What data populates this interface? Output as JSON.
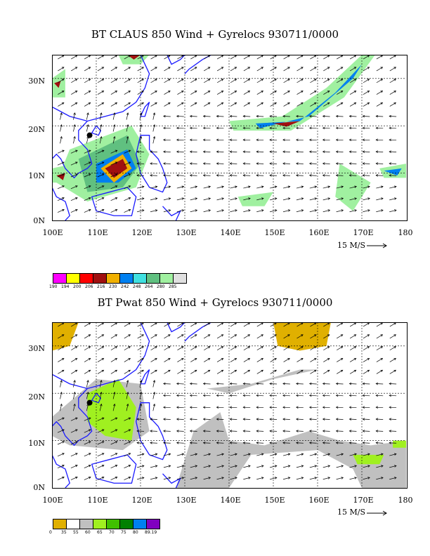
{
  "panels": [
    {
      "title": "BT CLAUS 850 Wind + Gyrelocs 930711/0000",
      "lat_labels": [
        "30N",
        "20N",
        "10N",
        "0N"
      ],
      "lon_labels": [
        "100E",
        "110E",
        "120E",
        "130E",
        "140E",
        "150E",
        "160E",
        "170E",
        "180"
      ],
      "scale_label": "15 M/S",
      "legend_colors": [
        "#ff00ff",
        "#ffff00",
        "#ff0000",
        "#a01010",
        "#f0b000",
        "#0080f0",
        "#40e0e0",
        "#60c080",
        "#a0f0a0",
        "#e0e0e0"
      ],
      "legend_labels": [
        "190",
        "194",
        "200",
        "206",
        "216",
        "230",
        "242",
        "248",
        "264",
        "280",
        "285"
      ]
    },
    {
      "title": "BT Pwat 850 Wind + Gyrelocs 930711/0000",
      "lat_labels": [
        "30N",
        "20N",
        "10N",
        "0N"
      ],
      "lon_labels": [
        "100E",
        "110E",
        "120E",
        "130E",
        "140E",
        "150E",
        "160E",
        "170E",
        "180"
      ],
      "scale_label": "15 M/S",
      "legend_colors": [
        "#e0b000",
        "#ffffff",
        "#c0c0c0",
        "#a0f020",
        "#40c000",
        "#008000",
        "#0080f0",
        "#8000c0"
      ],
      "legend_labels": [
        "0",
        "35",
        "55",
        "60",
        "65",
        "70",
        "75",
        "80",
        "89.19"
      ]
    }
  ]
}
